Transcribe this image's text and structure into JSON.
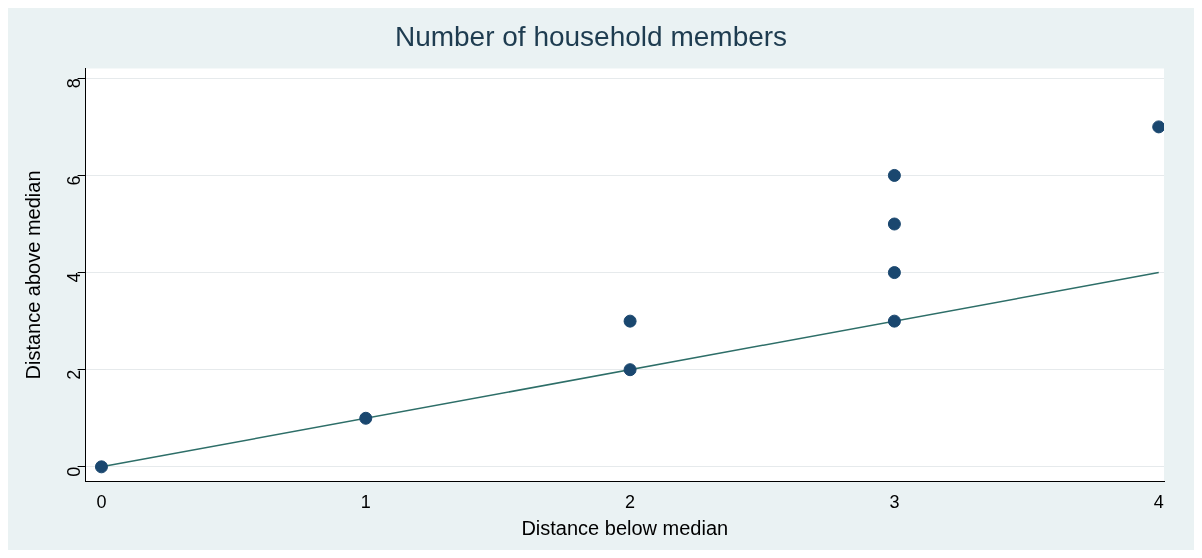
{
  "chart_data": {
    "type": "scatter",
    "title": "Number of household members",
    "xlabel": "Distance below median",
    "ylabel": "Distance above median",
    "xlim": [
      -0.06,
      4.02
    ],
    "ylim": [
      -0.3,
      8.2
    ],
    "xticks": [
      0,
      1,
      2,
      3,
      4
    ],
    "yticks": [
      0,
      2,
      4,
      6,
      8
    ],
    "grid": "y",
    "legend": false,
    "marker": "circle",
    "series": [
      {
        "color": "#1a476f",
        "x": [
          0,
          1,
          2,
          2,
          3,
          3,
          3,
          3,
          4
        ],
        "values": [
          0,
          1,
          2,
          3,
          3,
          4,
          5,
          6,
          7
        ]
      },
      {
        "type": "line",
        "color": "#2d6e68",
        "x": [
          0,
          4
        ],
        "values": [
          0,
          4
        ],
        "marker": "none"
      }
    ]
  }
}
